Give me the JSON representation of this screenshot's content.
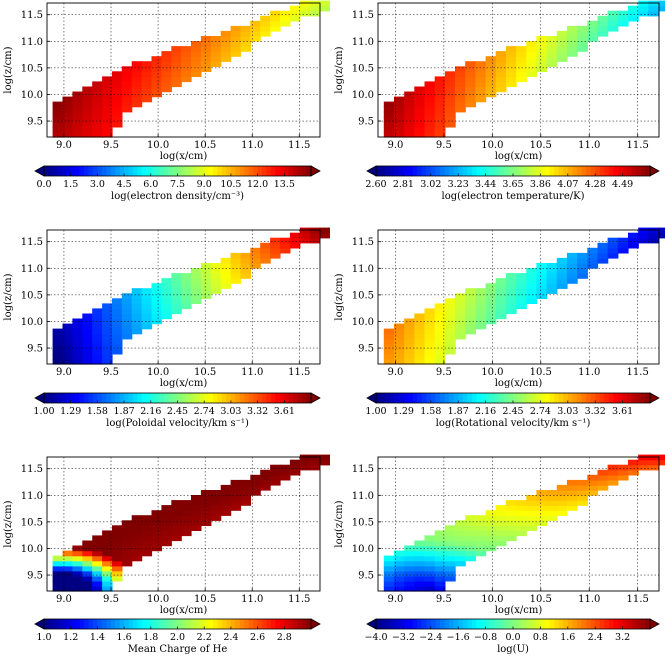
{
  "chart_data": [
    {
      "type": "heatmap",
      "panel": "electron-density",
      "xlabel": "log(x/cm)",
      "ylabel": "log(z/cm)",
      "xlim": [
        8.82,
        11.72
      ],
      "ylim": [
        9.2,
        11.72
      ],
      "xticks": [
        "9.0",
        "9.5",
        "10.0",
        "10.5",
        "11.0",
        "11.5"
      ],
      "yticks": [
        "9.5",
        "10.0",
        "10.5",
        "11.0",
        "11.5"
      ],
      "colorbar": {
        "label": "log(electron density/cm⁻³)",
        "range": [
          0.0,
          15.0
        ],
        "ticks": [
          "0.0",
          "1.5",
          "3.0",
          "4.5",
          "6.0",
          "7.5",
          "9.0",
          "10.5",
          "12.0",
          "13.5"
        ]
      },
      "trend": {
        "start_value": 14.5,
        "end_value": 8.5,
        "near_origin_boost": 0.0
      },
      "grid": true
    },
    {
      "type": "heatmap",
      "panel": "electron-temperature",
      "xlabel": "log(x/cm)",
      "ylabel": "log(z/cm)",
      "xlim": [
        8.82,
        11.72
      ],
      "ylim": [
        9.2,
        11.72
      ],
      "xticks": [
        "9.0",
        "9.5",
        "10.0",
        "10.5",
        "11.0",
        "11.5"
      ],
      "yticks": [
        "9.5",
        "10.0",
        "10.5",
        "11.0",
        "11.5"
      ],
      "colorbar": {
        "label": "log(electron temperature/K)",
        "range": [
          2.6,
          4.7
        ],
        "ticks": [
          "2.60",
          "2.81",
          "3.02",
          "3.23",
          "3.44",
          "3.65",
          "3.86",
          "4.07",
          "4.28",
          "4.49"
        ]
      },
      "trend": {
        "start_value": 4.6,
        "end_value": 3.25,
        "near_origin_boost": 0.0
      },
      "grid": true
    },
    {
      "type": "heatmap",
      "panel": "poloidal-velocity",
      "xlabel": "log(x/cm)",
      "ylabel": "log(z/cm)",
      "xlim": [
        8.82,
        11.72
      ],
      "ylim": [
        9.2,
        11.72
      ],
      "xticks": [
        "9.0",
        "9.5",
        "10.0",
        "10.5",
        "11.0",
        "11.5"
      ],
      "yticks": [
        "9.5",
        "10.0",
        "10.5",
        "11.0",
        "11.5"
      ],
      "colorbar": {
        "label": "log(Poloidal velocity/km s⁻¹)",
        "range": [
          1.0,
          3.9
        ],
        "ticks": [
          "1.00",
          "1.29",
          "1.58",
          "1.87",
          "2.16",
          "2.45",
          "2.74",
          "3.03",
          "3.32",
          "3.61"
        ]
      },
      "trend": {
        "start_value": 1.05,
        "end_value": 3.85,
        "near_origin_boost": 0.0
      },
      "grid": true
    },
    {
      "type": "heatmap",
      "panel": "rotational-velocity",
      "xlabel": "log(x/cm)",
      "ylabel": "log(z/cm)",
      "xlim": [
        8.82,
        11.72
      ],
      "ylim": [
        9.2,
        11.72
      ],
      "xticks": [
        "9.0",
        "9.5",
        "10.0",
        "10.5",
        "11.0",
        "11.5"
      ],
      "yticks": [
        "9.5",
        "10.0",
        "10.5",
        "11.0",
        "11.5"
      ],
      "colorbar": {
        "label": "log(Rotational velocity/km s⁻¹)",
        "range": [
          1.0,
          3.9
        ],
        "ticks": [
          "1.00",
          "1.29",
          "1.58",
          "1.87",
          "2.16",
          "2.45",
          "2.74",
          "3.03",
          "3.32",
          "3.61"
        ]
      },
      "trend": {
        "start_value": 3.15,
        "end_value": 1.15,
        "near_origin_boost": 0.0
      },
      "grid": true
    },
    {
      "type": "heatmap",
      "panel": "mean-charge-he",
      "xlabel": "log(x/cm)",
      "ylabel": "log(z/cm)",
      "xlim": [
        8.82,
        11.72
      ],
      "ylim": [
        9.2,
        11.72
      ],
      "xticks": [
        "9.0",
        "9.5",
        "10.0",
        "10.5",
        "11.0",
        "11.5"
      ],
      "yticks": [
        "9.5",
        "10.0",
        "10.5",
        "11.0",
        "11.5"
      ],
      "colorbar": {
        "label": "Mean Charge of He",
        "range": [
          1.0,
          3.0
        ],
        "ticks": [
          "1.0",
          "1.2",
          "1.4",
          "1.6",
          "1.8",
          "2.0",
          "2.2",
          "2.4",
          "2.6",
          "2.8"
        ]
      },
      "trend": {
        "start_value": 2.98,
        "end_value": 2.98,
        "near_origin_boost": 0.0,
        "ionization_front": true
      },
      "grid": true
    },
    {
      "type": "heatmap",
      "panel": "ionization-parameter",
      "xlabel": "log(x/cm)",
      "ylabel": "log(z/cm)",
      "xlim": [
        8.82,
        11.72
      ],
      "ylim": [
        9.2,
        11.72
      ],
      "xticks": [
        "9.0",
        "9.5",
        "10.0",
        "10.5",
        "11.0",
        "11.5"
      ],
      "yticks": [
        "9.5",
        "10.0",
        "10.5",
        "11.0",
        "11.5"
      ],
      "colorbar": {
        "label": "log(U)",
        "range": [
          -4.0,
          4.0
        ],
        "ticks": [
          "−4.0",
          "−3.2",
          "−2.4",
          "−1.6",
          "−0.8",
          "0.0",
          "0.8",
          "1.6",
          "2.4",
          "3.2"
        ]
      },
      "trend": {
        "start_value": 0.0,
        "end_value": 3.7,
        "near_origin_boost": 0.0,
        "shadow_dip": true
      },
      "grid": true
    }
  ]
}
